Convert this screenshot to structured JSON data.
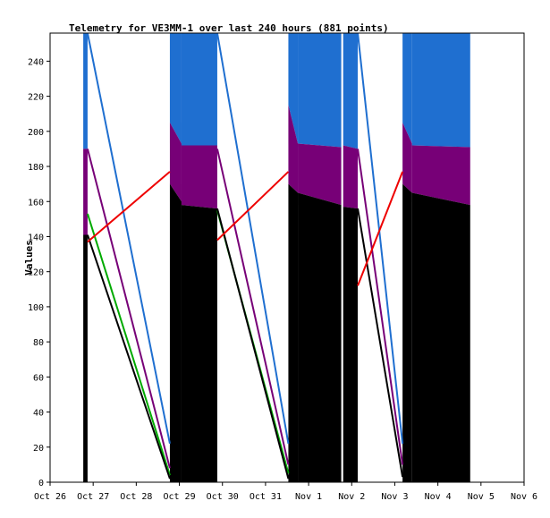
{
  "chart_data": {
    "type": "area",
    "title": "Telemetry for VE3MM-1 over last 240 hours (881 points)",
    "xlabel": "",
    "ylabel": "Values",
    "x_ticks": [
      "Oct 26",
      "Oct 27",
      "Oct 28",
      "Oct 29",
      "Oct 30",
      "Oct 31",
      "Nov 1",
      "Nov 2",
      "Nov 3",
      "Nov 4",
      "Nov 5",
      "Nov 6"
    ],
    "xlim_days": [
      0,
      11
    ],
    "ylim": [
      0,
      256
    ],
    "y_ticks": [
      0,
      20,
      40,
      60,
      80,
      100,
      120,
      140,
      160,
      180,
      200,
      220,
      240
    ],
    "grid": false,
    "series_colors": {
      "blue": "#1f6fd0",
      "purple": "#770077",
      "black": "#000000",
      "green": "#00aa00",
      "red": "#ee0000"
    },
    "segments": [
      {
        "x0": 0.77,
        "x1": 0.87,
        "black": [
          141,
          141
        ],
        "purple": [
          190,
          190
        ],
        "blue": [
          256,
          256
        ]
      },
      {
        "x0": 2.78,
        "x1": 3.05,
        "black": [
          170,
          160
        ],
        "purple": [
          205,
          193
        ],
        "blue": [
          256,
          256
        ]
      },
      {
        "x0": 3.05,
        "x1": 3.88,
        "black": [
          158,
          156
        ],
        "purple": [
          192,
          192
        ],
        "blue": [
          256,
          256
        ]
      },
      {
        "x0": 5.53,
        "x1": 5.75,
        "black": [
          170,
          165
        ],
        "purple": [
          215,
          193
        ],
        "blue": [
          256,
          256
        ]
      },
      {
        "x0": 5.75,
        "x1": 6.76,
        "black": [
          165,
          158
        ],
        "purple": [
          193,
          191
        ],
        "blue": [
          256,
          256
        ]
      },
      {
        "x0": 6.8,
        "x1": 7.14,
        "black": [
          157,
          156
        ],
        "purple": [
          192,
          190
        ],
        "blue": [
          256,
          256
        ]
      },
      {
        "x0": 8.18,
        "x1": 8.4,
        "black": [
          170,
          165
        ],
        "purple": [
          205,
          193
        ],
        "blue": [
          256,
          256
        ]
      },
      {
        "x0": 8.4,
        "x1": 9.75,
        "black": [
          165,
          158
        ],
        "purple": [
          192,
          191
        ],
        "blue": [
          256,
          256
        ]
      }
    ],
    "connector_lines": [
      {
        "series": "blue",
        "points": [
          [
            0.87,
            256
          ],
          [
            2.78,
            22
          ]
        ]
      },
      {
        "series": "purple",
        "points": [
          [
            0.87,
            190
          ],
          [
            2.78,
            8
          ]
        ]
      },
      {
        "series": "green",
        "points": [
          [
            0.87,
            153
          ],
          [
            2.78,
            4
          ]
        ]
      },
      {
        "series": "black",
        "points": [
          [
            0.87,
            141
          ],
          [
            2.78,
            2
          ]
        ]
      },
      {
        "series": "red",
        "points": [
          [
            0.87,
            137
          ],
          [
            2.78,
            177
          ]
        ]
      },
      {
        "series": "blue",
        "points": [
          [
            3.88,
            256
          ],
          [
            5.53,
            22
          ]
        ]
      },
      {
        "series": "purple",
        "points": [
          [
            3.88,
            190
          ],
          [
            5.53,
            10
          ]
        ]
      },
      {
        "series": "green",
        "points": [
          [
            3.88,
            155
          ],
          [
            5.53,
            5
          ]
        ]
      },
      {
        "series": "black",
        "points": [
          [
            3.88,
            156
          ],
          [
            5.53,
            2
          ]
        ]
      },
      {
        "series": "red",
        "points": [
          [
            3.88,
            138
          ],
          [
            5.53,
            177
          ]
        ]
      },
      {
        "series": "blue",
        "points": [
          [
            7.14,
            256
          ],
          [
            8.18,
            22
          ]
        ]
      },
      {
        "series": "purple",
        "points": [
          [
            7.14,
            190
          ],
          [
            8.18,
            10
          ]
        ]
      },
      {
        "series": "black",
        "points": [
          [
            7.14,
            156
          ],
          [
            8.18,
            3
          ]
        ]
      },
      {
        "series": "red",
        "points": [
          [
            7.14,
            112
          ],
          [
            8.18,
            177
          ]
        ]
      }
    ]
  }
}
